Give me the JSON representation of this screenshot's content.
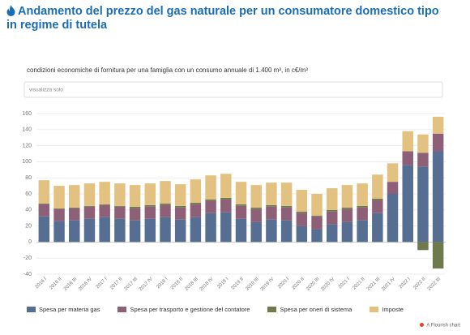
{
  "header": {
    "title": "Andamento del prezzo del gas naturale per un consumatore domestico tipo in regime di tutela"
  },
  "chart_data": {
    "type": "stacked_bar",
    "subtitle": "condizioni economiche di fornitura per una famiglia con un consumo annuale di 1.400 m³, in c€/m³",
    "filter_label": "visualizza solo",
    "categories": [
      "2016 I",
      "2016 II",
      "2016 III",
      "2016 IV",
      "2017 I",
      "2017 II",
      "2017 III",
      "2017 IV",
      "2018 I",
      "2018 II",
      "2018 III",
      "2018 IV",
      "2019 I",
      "2019 II",
      "2019 III",
      "2019 IV",
      "2020 I",
      "2020 II",
      "2020 III",
      "2020 IV",
      "2021 I",
      "2021 II",
      "2021 III",
      "2021 IV",
      "2022 I",
      "2022 II",
      "2022 III"
    ],
    "series": [
      {
        "name": "Spesa per materia gas",
        "color": "#566e92",
        "values": [
          32,
          26,
          27,
          29,
          31,
          29,
          27,
          29,
          31,
          28,
          31,
          36,
          37,
          29,
          25,
          28,
          27,
          20,
          16,
          22,
          25,
          27,
          36,
          60,
          96,
          94,
          113
        ]
      },
      {
        "name": "Spesa per trasporto e gestione del contatore",
        "color": "#8e6078",
        "values": [
          15,
          15,
          15,
          15,
          15,
          15,
          15,
          15,
          15,
          15,
          16,
          15,
          16,
          16,
          16,
          16,
          16,
          16,
          16,
          16,
          16,
          16,
          16,
          15,
          17,
          17,
          22
        ]
      },
      {
        "name": "Spesa per oneri di sistema",
        "color": "#6f7a4c",
        "values": [
          1,
          1,
          1,
          1,
          1,
          1,
          2,
          2,
          2,
          2,
          2,
          2,
          2,
          2,
          2,
          2,
          2,
          2,
          1,
          2,
          2,
          2,
          2,
          0,
          0,
          -10,
          -33
        ]
      },
      {
        "name": "Imposte",
        "color": "#e2c181",
        "values": [
          29,
          28,
          28,
          28,
          28,
          28,
          27,
          27,
          28,
          27,
          29,
          30,
          30,
          28,
          28,
          28,
          29,
          27,
          27,
          27,
          28,
          28,
          30,
          23,
          25,
          23,
          21
        ]
      }
    ],
    "ylim": [
      -40,
      160
    ],
    "yticks": [
      -40,
      -20,
      0,
      20,
      40,
      60,
      80,
      100,
      120,
      140,
      160
    ],
    "grid": true,
    "legend": "bottom",
    "credit": "A Flourish chart"
  }
}
